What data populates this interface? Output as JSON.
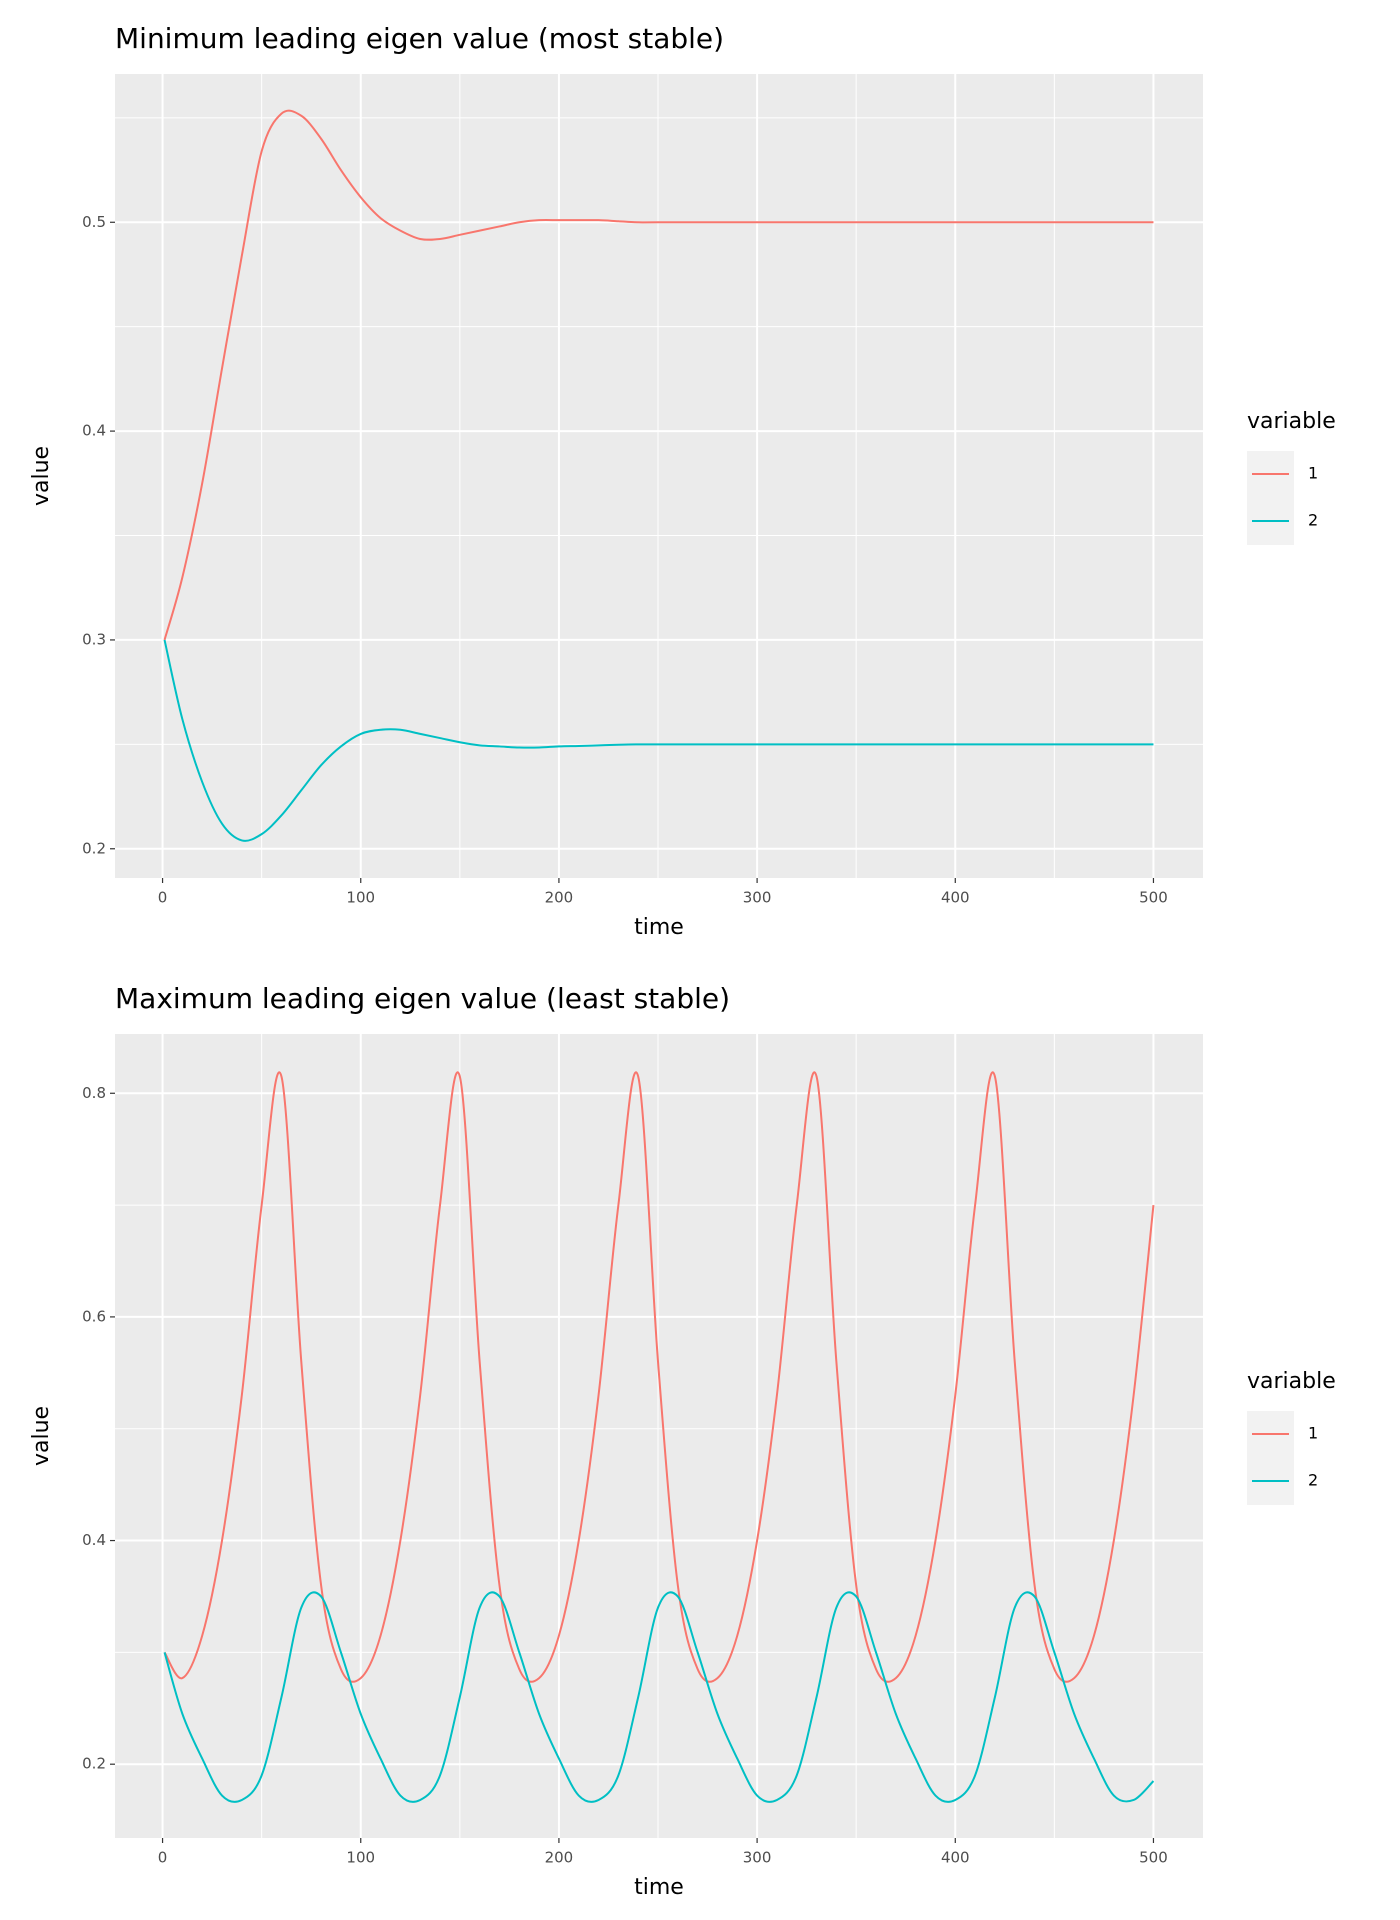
{
  "chart_data": [
    {
      "type": "line",
      "title": "Minimum leading eigen value (most stable)",
      "x_label": "time",
      "y_label": "value",
      "legend_title": "variable",
      "x": [
        1,
        10,
        20,
        30,
        40,
        50,
        60,
        70,
        80,
        90,
        100,
        110,
        120,
        130,
        140,
        150,
        160,
        170,
        180,
        190,
        200,
        210,
        220,
        230,
        240,
        250,
        300,
        350,
        400,
        450,
        500
      ],
      "series": [
        {
          "name": "1",
          "color": "#f8766d",
          "values": [
            0.3,
            0.33,
            0.375,
            0.43,
            0.484,
            0.534,
            0.552,
            0.551,
            0.54,
            0.525,
            0.512,
            0.502,
            0.496,
            0.492,
            0.492,
            0.494,
            0.496,
            0.498,
            0.5,
            0.501,
            0.501,
            0.501,
            0.501,
            0.5005,
            0.5,
            0.5,
            0.5,
            0.5,
            0.5,
            0.5,
            0.5
          ]
        },
        {
          "name": "2",
          "color": "#00bfc4",
          "values": [
            0.3,
            0.262,
            0.232,
            0.212,
            0.204,
            0.207,
            0.216,
            0.228,
            0.24,
            0.249,
            0.255,
            0.257,
            0.257,
            0.255,
            0.253,
            0.251,
            0.2495,
            0.249,
            0.2485,
            0.2485,
            0.249,
            0.2492,
            0.2495,
            0.2498,
            0.25,
            0.25,
            0.25,
            0.25,
            0.25,
            0.25,
            0.25
          ]
        }
      ],
      "xlim": [
        -24,
        525
      ],
      "xticks": [
        0,
        100,
        200,
        300,
        400,
        500
      ],
      "ylim": [
        0.186,
        0.571
      ],
      "yticks": [
        0.2,
        0.3,
        0.4,
        0.5
      ],
      "grid": true
    },
    {
      "type": "line",
      "title": "Maximum leading eigen value (least stable)",
      "x_label": "time",
      "y_label": "value",
      "legend_title": "variable",
      "x": [
        1,
        10,
        20,
        30,
        40,
        50,
        60,
        70,
        80,
        90,
        100,
        110,
        120,
        130,
        140,
        150,
        160,
        170,
        180,
        190,
        200,
        210,
        220,
        230,
        240,
        250,
        260,
        270,
        280,
        290,
        300,
        310,
        320,
        330,
        340,
        350,
        360,
        370,
        380,
        390,
        400,
        410,
        420,
        430,
        440,
        450,
        460,
        470,
        480,
        490,
        500
      ],
      "series": [
        {
          "name": "1",
          "color": "#f8766d",
          "values": [
            0.3,
            0.277,
            0.315,
            0.4,
            0.53,
            0.7,
            0.815,
            0.56,
            0.36,
            0.285,
            0.277,
            0.315,
            0.4,
            0.53,
            0.7,
            0.815,
            0.56,
            0.36,
            0.285,
            0.277,
            0.315,
            0.4,
            0.53,
            0.7,
            0.815,
            0.56,
            0.36,
            0.285,
            0.277,
            0.315,
            0.4,
            0.53,
            0.7,
            0.815,
            0.56,
            0.36,
            0.285,
            0.277,
            0.315,
            0.4,
            0.53,
            0.7,
            0.815,
            0.56,
            0.36,
            0.285,
            0.277,
            0.315,
            0.4,
            0.53,
            0.7
          ]
        },
        {
          "name": "2",
          "color": "#00bfc4",
          "values": [
            0.3,
            0.245,
            0.205,
            0.172,
            0.168,
            0.19,
            0.26,
            0.34,
            0.35,
            0.3,
            0.245,
            0.205,
            0.172,
            0.168,
            0.19,
            0.26,
            0.34,
            0.35,
            0.3,
            0.245,
            0.205,
            0.172,
            0.168,
            0.19,
            0.26,
            0.34,
            0.35,
            0.3,
            0.245,
            0.205,
            0.172,
            0.168,
            0.19,
            0.26,
            0.34,
            0.35,
            0.3,
            0.245,
            0.205,
            0.172,
            0.168,
            0.19,
            0.26,
            0.34,
            0.35,
            0.3,
            0.245,
            0.205,
            0.172,
            0.168,
            0.185
          ]
        }
      ],
      "xlim": [
        -24,
        525
      ],
      "xticks": [
        0,
        100,
        200,
        300,
        400,
        500
      ],
      "ylim": [
        0.134,
        0.853
      ],
      "yticks": [
        0.2,
        0.4,
        0.6,
        0.8
      ],
      "grid": true
    }
  ]
}
